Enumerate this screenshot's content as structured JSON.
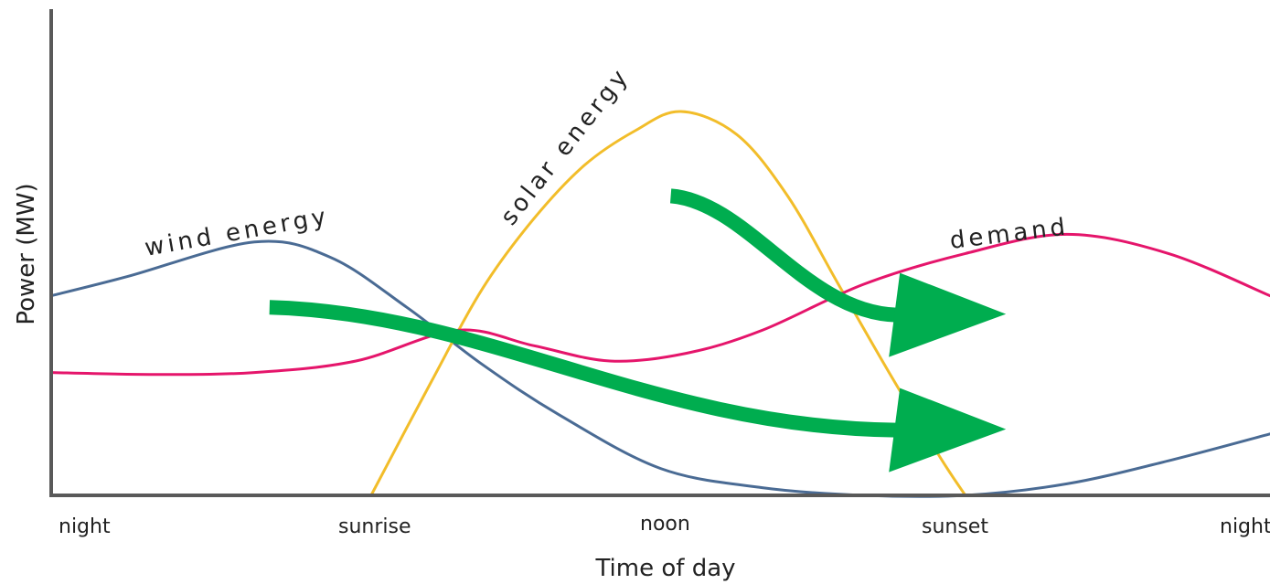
{
  "colors": {
    "wind": "#4a6b94",
    "solar": "#f2bd2a",
    "demand": "#e5156b",
    "arrow": "#00ad4f",
    "axis": "#595959",
    "background": "#ffffff"
  },
  "chart_data": {
    "type": "line",
    "title": "",
    "xlabel": "Time of day",
    "ylabel": "Power (MW)",
    "x_ticks": [
      "night",
      "sunrise",
      "noon",
      "sunset",
      "night"
    ],
    "xlim": [
      0,
      24
    ],
    "ylim": [
      0,
      100
    ],
    "y_ticks_shown": false,
    "grid": false,
    "legend": "none",
    "series": [
      {
        "name": "wind energy",
        "color_key": "wind",
        "x": [
          0,
          1.5,
          4,
          5.5,
          7,
          8.5,
          10,
          12,
          14,
          16,
          18,
          20,
          22,
          24
        ],
        "y": [
          52,
          57,
          66,
          62,
          49,
          34,
          21,
          7,
          2,
          0,
          0,
          3,
          9,
          16
        ]
      },
      {
        "name": "solar energy",
        "color_key": "solar",
        "x": [
          6.3,
          7.5,
          8.5,
          9.5,
          10.5,
          11.5,
          12.4,
          13.5,
          14.5,
          15.5,
          16.5,
          17.5,
          18
        ],
        "y": [
          0,
          30,
          54,
          72,
          86,
          95,
          100,
          94,
          78,
          55,
          32,
          10,
          0
        ]
      },
      {
        "name": "demand",
        "color_key": "demand",
        "x": [
          0,
          2,
          4,
          6,
          8,
          9.5,
          11,
          12.5,
          14,
          16,
          18,
          20,
          22,
          24
        ],
        "y": [
          32,
          31.5,
          32,
          35,
          43,
          39,
          35,
          37,
          43,
          55,
          63,
          68,
          63,
          52
        ]
      }
    ],
    "annotations": [
      {
        "type": "arrow",
        "color_key": "arrow",
        "from": [
          4.3,
          49
        ],
        "to": [
          18.8,
          17
        ],
        "meaning": "shift from wind peak toward evening demand"
      },
      {
        "type": "arrow",
        "color_key": "arrow",
        "from": [
          12.2,
          78
        ],
        "to": [
          18.8,
          47
        ],
        "meaning": "shift from solar peak toward demand peak"
      }
    ]
  }
}
